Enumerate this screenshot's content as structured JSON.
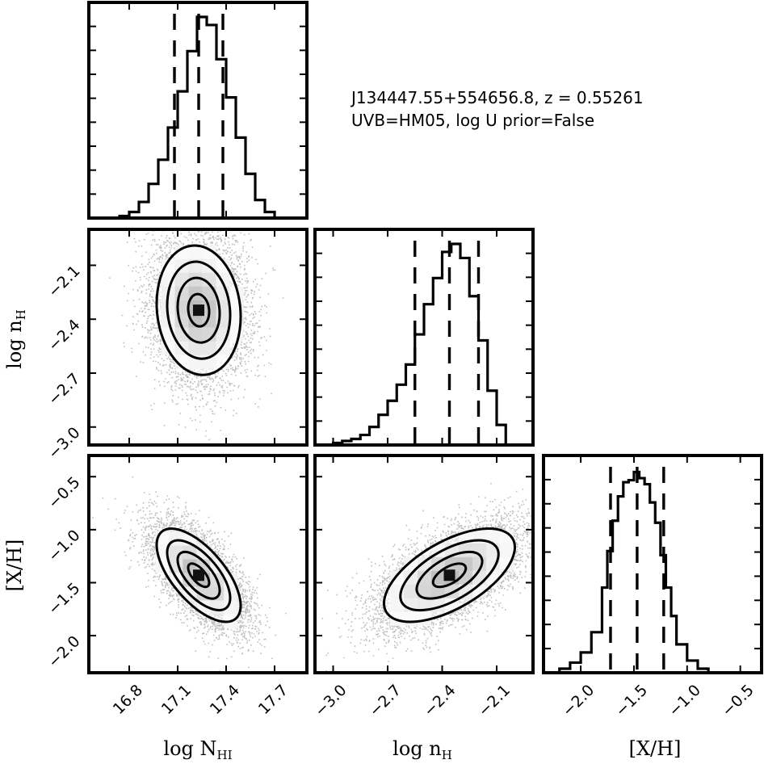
{
  "annotation": {
    "line1": "J134447.55+554656.8, z = 0.55261",
    "line2": "UVB=HM05, log U prior=False"
  },
  "chart_data": {
    "type": "corner",
    "params": [
      {
        "key": "NHI",
        "label": "log N_HI",
        "label_main": "log N",
        "label_sub": "HI",
        "range": [
          16.55,
          17.9
        ],
        "ticks": [
          16.8,
          17.1,
          17.4,
          17.7
        ],
        "tick_labels": [
          "16.8",
          "17.1",
          "17.4",
          "17.7"
        ],
        "quantiles": [
          17.08,
          17.23,
          17.38
        ],
        "hist": {
          "edges": [
            16.74,
            16.8,
            16.86,
            16.92,
            16.98,
            17.04,
            17.1,
            17.16,
            17.22,
            17.28,
            17.34,
            17.4,
            17.46,
            17.52,
            17.58,
            17.64,
            17.7
          ],
          "heights": [
            0.01,
            0.03,
            0.08,
            0.17,
            0.29,
            0.45,
            0.63,
            0.83,
            1.0,
            0.96,
            0.79,
            0.6,
            0.4,
            0.22,
            0.09,
            0.03
          ]
        }
      },
      {
        "key": "nH",
        "label": "log n_H",
        "label_main": "log n",
        "label_sub": "H",
        "range": [
          -3.1,
          -1.9
        ],
        "ticks": [
          -3.0,
          -2.7,
          -2.4,
          -2.1
        ],
        "tick_labels": [
          "−3.0",
          "−2.7",
          "−2.4",
          "−2.1"
        ],
        "quantiles": [
          -2.55,
          -2.36,
          -2.2
        ],
        "hist": {
          "edges": [
            -3.0,
            -2.95,
            -2.9,
            -2.85,
            -2.8,
            -2.75,
            -2.7,
            -2.65,
            -2.6,
            -2.55,
            -2.5,
            -2.45,
            -2.4,
            -2.35,
            -2.3,
            -2.25,
            -2.2,
            -2.15,
            -2.1,
            -2.05
          ],
          "heights": [
            0.01,
            0.02,
            0.03,
            0.05,
            0.09,
            0.15,
            0.22,
            0.3,
            0.4,
            0.55,
            0.7,
            0.83,
            0.96,
            1.0,
            0.93,
            0.74,
            0.52,
            0.27,
            0.1
          ]
        }
      },
      {
        "key": "XH",
        "label": "[X/H]",
        "label_main": "[X/H]",
        "label_sub": "",
        "range": [
          -2.35,
          -0.3
        ],
        "ticks": [
          -2.0,
          -1.5,
          -1.0,
          -0.5
        ],
        "tick_labels": [
          "−2.0",
          "−1.5",
          "−1.0",
          "−0.5"
        ],
        "quantiles": [
          -1.72,
          -1.47,
          -1.22
        ],
        "hist": {
          "edges": [
            -2.2,
            -2.1,
            -2.0,
            -1.9,
            -1.8,
            -1.75,
            -1.7,
            -1.65,
            -1.6,
            -1.55,
            -1.5,
            -1.45,
            -1.4,
            -1.35,
            -1.3,
            -1.25,
            -1.2,
            -1.15,
            -1.1,
            -1.0,
            -0.9,
            -0.8
          ],
          "heights": [
            0.02,
            0.05,
            0.1,
            0.2,
            0.42,
            0.6,
            0.75,
            0.87,
            0.94,
            0.95,
            0.99,
            0.96,
            0.93,
            0.84,
            0.74,
            0.58,
            0.42,
            0.28,
            0.14,
            0.06,
            0.02
          ]
        }
      }
    ],
    "joint": [
      {
        "x": "NHI",
        "y": "nH",
        "center": [
          17.23,
          -2.35
        ],
        "sigma": [
          0.13,
          0.18
        ],
        "rho": -0.1
      },
      {
        "x": "NHI",
        "y": "XH",
        "center": [
          17.23,
          -1.43
        ],
        "sigma": [
          0.13,
          0.22
        ],
        "rho": -0.65
      },
      {
        "x": "nH",
        "y": "XH",
        "center": [
          -2.36,
          -1.43
        ],
        "sigma": [
          0.18,
          0.22
        ],
        "rho": 0.6
      }
    ],
    "contour_levels_sigma": [
      0.5,
      1.0,
      1.5,
      2.0
    ],
    "quantile_style": "dashed"
  }
}
